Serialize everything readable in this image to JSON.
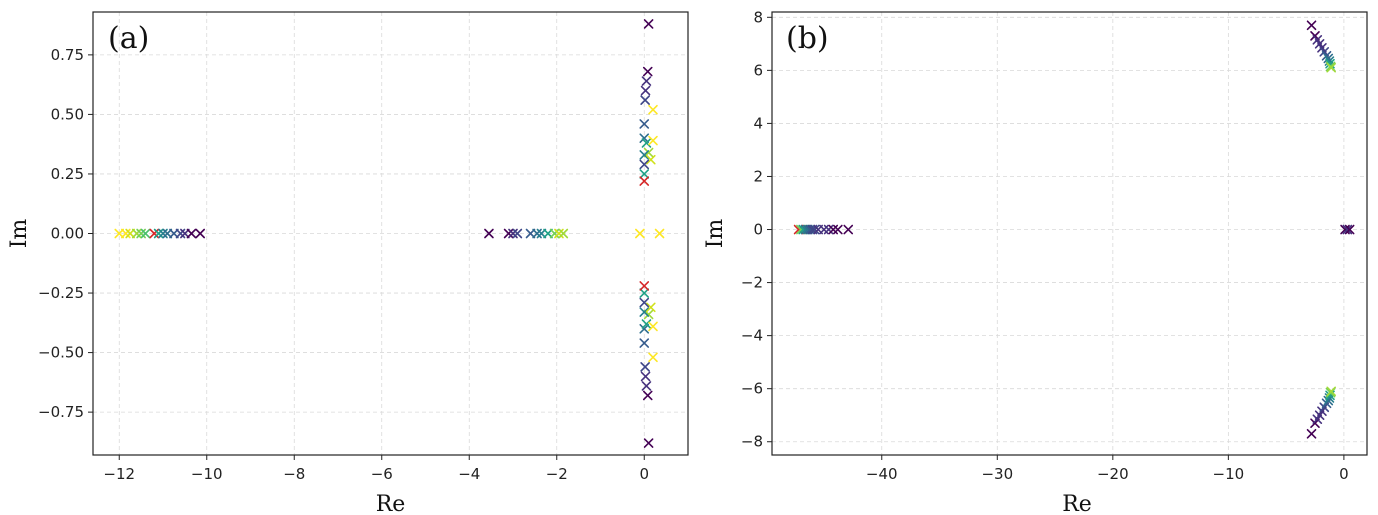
{
  "chart_data": [
    {
      "type": "scatter",
      "panel_label": "(a)",
      "xlabel": "Re",
      "ylabel": "Im",
      "xlim": [
        -12.6,
        1.0
      ],
      "ylim": [
        -0.93,
        0.93
      ],
      "xticks": [
        -12,
        -10,
        -8,
        -6,
        -4,
        -2,
        0
      ],
      "xtick_labels": [
        "−12",
        "−10",
        "−8",
        "−6",
        "−4",
        "−2",
        "0"
      ],
      "yticks": [
        -0.75,
        -0.5,
        -0.25,
        0.0,
        0.25,
        0.5,
        0.75
      ],
      "ytick_labels": [
        "−0.75",
        "−0.50",
        "−0.25",
        "0.00",
        "0.25",
        "0.50",
        "0.75"
      ],
      "grid": true,
      "marker": "x",
      "points": [
        {
          "x": -12.0,
          "y": 0.0,
          "c": "#fde725"
        },
        {
          "x": -11.85,
          "y": 0.0,
          "c": "#fde725"
        },
        {
          "x": -11.75,
          "y": 0.0,
          "c": "#d0e11c"
        },
        {
          "x": -11.6,
          "y": 0.0,
          "c": "#a0da39"
        },
        {
          "x": -11.5,
          "y": 0.0,
          "c": "#73d056"
        },
        {
          "x": -11.4,
          "y": 0.0,
          "c": "#4ac16d"
        },
        {
          "x": -11.2,
          "y": 0.0,
          "c": "#d62728"
        },
        {
          "x": -11.1,
          "y": 0.0,
          "c": "#1fa187"
        },
        {
          "x": -11.0,
          "y": 0.0,
          "c": "#277f8e"
        },
        {
          "x": -10.9,
          "y": 0.0,
          "c": "#2e6f8e"
        },
        {
          "x": -10.75,
          "y": 0.0,
          "c": "#365c8d"
        },
        {
          "x": -10.6,
          "y": 0.0,
          "c": "#3f4788"
        },
        {
          "x": -10.5,
          "y": 0.0,
          "c": "#46327e"
        },
        {
          "x": -10.35,
          "y": 0.0,
          "c": "#440154"
        },
        {
          "x": -10.15,
          "y": 0.0,
          "c": "#440154"
        },
        {
          "x": -3.55,
          "y": 0.0,
          "c": "#440154"
        },
        {
          "x": -3.1,
          "y": 0.0,
          "c": "#440154"
        },
        {
          "x": -3.0,
          "y": 0.0,
          "c": "#46327e"
        },
        {
          "x": -2.9,
          "y": 0.0,
          "c": "#3f4788"
        },
        {
          "x": -2.6,
          "y": 0.0,
          "c": "#365c8d"
        },
        {
          "x": -2.45,
          "y": 0.0,
          "c": "#2e6f8e"
        },
        {
          "x": -2.35,
          "y": 0.0,
          "c": "#277f8e"
        },
        {
          "x": -2.2,
          "y": 0.0,
          "c": "#1fa187"
        },
        {
          "x": -2.05,
          "y": 0.0,
          "c": "#73d056"
        },
        {
          "x": -1.95,
          "y": 0.0,
          "c": "#d0e11c"
        },
        {
          "x": -1.85,
          "y": 0.0,
          "c": "#a0da39"
        },
        {
          "x": -0.1,
          "y": 0.0,
          "c": "#fde725"
        },
        {
          "x": 0.35,
          "y": 0.0,
          "c": "#fde725"
        },
        {
          "x": 0.1,
          "y": 0.88,
          "c": "#440154"
        },
        {
          "x": 0.08,
          "y": 0.68,
          "c": "#440154"
        },
        {
          "x": 0.05,
          "y": 0.64,
          "c": "#46327e"
        },
        {
          "x": 0.03,
          "y": 0.6,
          "c": "#46327e"
        },
        {
          "x": 0.02,
          "y": 0.56,
          "c": "#3f4788"
        },
        {
          "x": 0.2,
          "y": 0.52,
          "c": "#fde725"
        },
        {
          "x": 0.0,
          "y": 0.46,
          "c": "#365c8d"
        },
        {
          "x": 0.0,
          "y": 0.4,
          "c": "#2e6f8e"
        },
        {
          "x": 0.05,
          "y": 0.38,
          "c": "#1fa187"
        },
        {
          "x": 0.2,
          "y": 0.39,
          "c": "#fde725"
        },
        {
          "x": 0.1,
          "y": 0.34,
          "c": "#a0da39"
        },
        {
          "x": 0.0,
          "y": 0.33,
          "c": "#277f8e"
        },
        {
          "x": 0.15,
          "y": 0.31,
          "c": "#d0e11c"
        },
        {
          "x": 0.0,
          "y": 0.29,
          "c": "#3f4788"
        },
        {
          "x": 0.0,
          "y": 0.25,
          "c": "#1fa187"
        },
        {
          "x": 0.0,
          "y": 0.22,
          "c": "#d62728"
        },
        {
          "x": 0.1,
          "y": -0.88,
          "c": "#440154"
        },
        {
          "x": 0.08,
          "y": -0.68,
          "c": "#440154"
        },
        {
          "x": 0.05,
          "y": -0.64,
          "c": "#46327e"
        },
        {
          "x": 0.03,
          "y": -0.6,
          "c": "#46327e"
        },
        {
          "x": 0.02,
          "y": -0.56,
          "c": "#3f4788"
        },
        {
          "x": 0.2,
          "y": -0.52,
          "c": "#fde725"
        },
        {
          "x": 0.0,
          "y": -0.46,
          "c": "#365c8d"
        },
        {
          "x": 0.0,
          "y": -0.4,
          "c": "#2e6f8e"
        },
        {
          "x": 0.05,
          "y": -0.38,
          "c": "#1fa187"
        },
        {
          "x": 0.2,
          "y": -0.39,
          "c": "#fde725"
        },
        {
          "x": 0.1,
          "y": -0.34,
          "c": "#a0da39"
        },
        {
          "x": 0.0,
          "y": -0.33,
          "c": "#277f8e"
        },
        {
          "x": 0.15,
          "y": -0.31,
          "c": "#d0e11c"
        },
        {
          "x": 0.0,
          "y": -0.29,
          "c": "#3f4788"
        },
        {
          "x": 0.0,
          "y": -0.25,
          "c": "#1fa187"
        },
        {
          "x": 0.0,
          "y": -0.22,
          "c": "#d62728"
        }
      ]
    },
    {
      "type": "scatter",
      "panel_label": "(b)",
      "xlabel": "Re",
      "ylabel": "Im",
      "xlim": [
        -49.5,
        2.0
      ],
      "ylim": [
        -8.5,
        8.2
      ],
      "xticks": [
        -40,
        -30,
        -20,
        -10,
        0
      ],
      "xtick_labels": [
        "−40",
        "−30",
        "−20",
        "−10",
        "0"
      ],
      "yticks": [
        -8,
        -6,
        -4,
        -2,
        0,
        2,
        4,
        6,
        8
      ],
      "ytick_labels": [
        "−8",
        "−6",
        "−4",
        "−2",
        "0",
        "2",
        "4",
        "6",
        "8"
      ],
      "grid": true,
      "marker": "x",
      "points": [
        {
          "x": -47.2,
          "y": 0.0,
          "c": "#d62728"
        },
        {
          "x": -47.0,
          "y": 0.0,
          "c": "#73d056"
        },
        {
          "x": -46.8,
          "y": 0.0,
          "c": "#1fa187"
        },
        {
          "x": -46.6,
          "y": 0.0,
          "c": "#277f8e"
        },
        {
          "x": -46.4,
          "y": 0.0,
          "c": "#2e6f8e"
        },
        {
          "x": -46.2,
          "y": 0.0,
          "c": "#365c8d"
        },
        {
          "x": -46.0,
          "y": 0.0,
          "c": "#3f4788"
        },
        {
          "x": -45.8,
          "y": 0.0,
          "c": "#3f4788"
        },
        {
          "x": -45.5,
          "y": 0.0,
          "c": "#46327e"
        },
        {
          "x": -45.0,
          "y": 0.0,
          "c": "#46327e"
        },
        {
          "x": -44.6,
          "y": 0.0,
          "c": "#46327e"
        },
        {
          "x": -44.2,
          "y": 0.0,
          "c": "#440154"
        },
        {
          "x": -43.8,
          "y": 0.0,
          "c": "#440154"
        },
        {
          "x": -42.9,
          "y": 0.0,
          "c": "#440154"
        },
        {
          "x": 0.1,
          "y": 0.0,
          "c": "#440154"
        },
        {
          "x": 0.3,
          "y": 0.0,
          "c": "#46327e"
        },
        {
          "x": 0.5,
          "y": 0.0,
          "c": "#440154"
        },
        {
          "x": -2.8,
          "y": 7.7,
          "c": "#440154"
        },
        {
          "x": -2.5,
          "y": 7.3,
          "c": "#440154"
        },
        {
          "x": -2.3,
          "y": 7.15,
          "c": "#46327e"
        },
        {
          "x": -2.1,
          "y": 7.0,
          "c": "#46327e"
        },
        {
          "x": -1.9,
          "y": 6.85,
          "c": "#46327e"
        },
        {
          "x": -1.7,
          "y": 6.7,
          "c": "#3f4788"
        },
        {
          "x": -1.5,
          "y": 6.55,
          "c": "#365c8d"
        },
        {
          "x": -1.35,
          "y": 6.45,
          "c": "#2e6f8e"
        },
        {
          "x": -1.25,
          "y": 6.35,
          "c": "#277f8e"
        },
        {
          "x": -1.2,
          "y": 6.25,
          "c": "#1fa187"
        },
        {
          "x": -1.15,
          "y": 6.15,
          "c": "#73d056"
        },
        {
          "x": -1.1,
          "y": 6.1,
          "c": "#a0da39"
        },
        {
          "x": -2.8,
          "y": -7.7,
          "c": "#440154"
        },
        {
          "x": -2.5,
          "y": -7.3,
          "c": "#440154"
        },
        {
          "x": -2.3,
          "y": -7.15,
          "c": "#46327e"
        },
        {
          "x": -2.1,
          "y": -7.0,
          "c": "#46327e"
        },
        {
          "x": -1.9,
          "y": -6.85,
          "c": "#46327e"
        },
        {
          "x": -1.7,
          "y": -6.7,
          "c": "#3f4788"
        },
        {
          "x": -1.5,
          "y": -6.55,
          "c": "#365c8d"
        },
        {
          "x": -1.35,
          "y": -6.45,
          "c": "#2e6f8e"
        },
        {
          "x": -1.25,
          "y": -6.35,
          "c": "#277f8e"
        },
        {
          "x": -1.2,
          "y": -6.25,
          "c": "#1fa187"
        },
        {
          "x": -1.15,
          "y": -6.15,
          "c": "#73d056"
        },
        {
          "x": -1.1,
          "y": -6.1,
          "c": "#a0da39"
        }
      ]
    }
  ]
}
